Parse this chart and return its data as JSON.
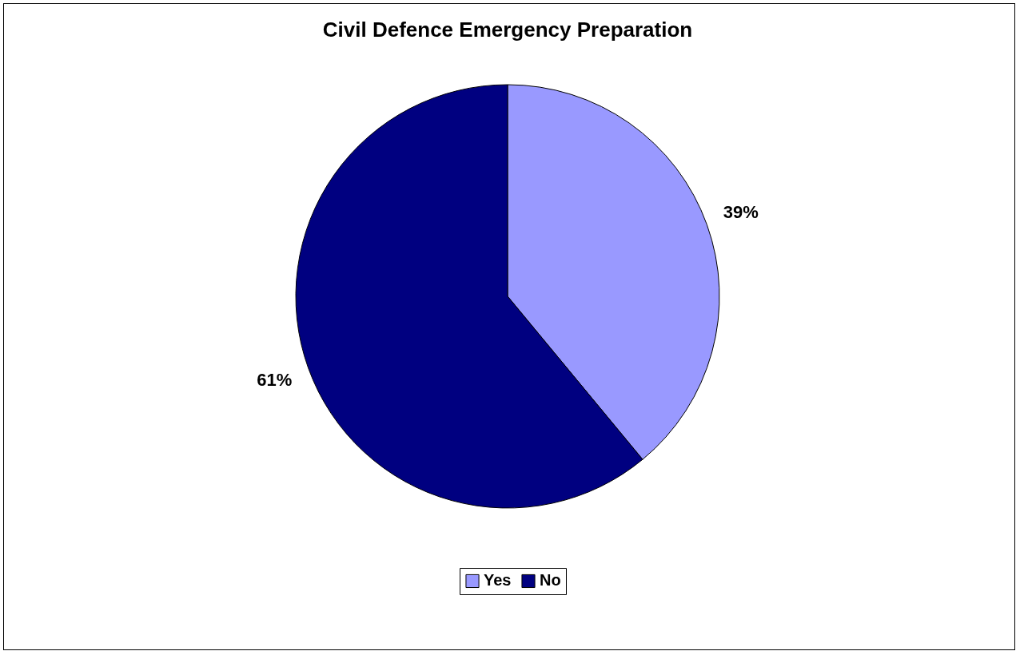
{
  "chart_data": {
    "type": "pie",
    "title": "Civil Defence Emergency Preparation",
    "categories": [
      "Yes",
      "No"
    ],
    "values": [
      39,
      61
    ],
    "colors": [
      "#9999ff",
      "#000080"
    ],
    "value_labels": [
      "39%",
      "61%"
    ],
    "legend": "bottom"
  }
}
